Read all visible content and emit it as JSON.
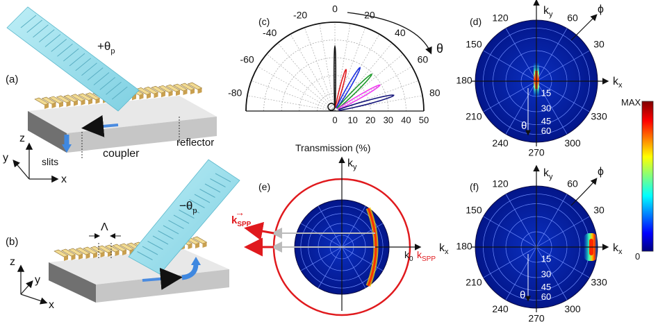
{
  "panel_a": {
    "label": "(a)",
    "angle_label": "+θ",
    "angle_sub": "p",
    "slits": "slits",
    "coupler": "coupler",
    "reflector": "reflector",
    "axis_z": "z",
    "axis_y": "y",
    "axis_x": "x"
  },
  "panel_b": {
    "label": "(b)",
    "angle_label": "−θ",
    "angle_sub": "p",
    "period": "Λ",
    "axis_z": "z",
    "axis_y": "y",
    "axis_x": "x"
  },
  "panel_c": {
    "label": "(c)",
    "theta_label": "θ",
    "angle_ticks": [
      "-80",
      "-60",
      "-40",
      "-20",
      "0",
      "20",
      "40",
      "60",
      "80"
    ],
    "radial_ticks": [
      "0",
      "10",
      "20",
      "30",
      "40",
      "50"
    ],
    "xlabel": "Transmission (%)"
  },
  "panel_d": {
    "label": "(d)",
    "ky": "k",
    "ky_sub": "y",
    "kx": "k",
    "kx_sub": "x",
    "phi": "ϕ",
    "theta": "θ",
    "phi_ticks": [
      "120",
      "60",
      "150",
      "30",
      "180",
      "210",
      "330",
      "240",
      "300",
      "270"
    ],
    "theta_ticks": [
      "15",
      "30",
      "45",
      "60"
    ]
  },
  "panel_e": {
    "label": "(e)",
    "ky": "k",
    "ky_sub": "y",
    "kx": "k",
    "kx_sub": "x",
    "kspp_vec": "k",
    "kspp_vec_sub": "SPP",
    "k0": "k",
    "k0_sub": "0",
    "kspp": "k",
    "kspp_sub": "SPP"
  },
  "panel_f": {
    "label": "(f)",
    "ky": "k",
    "ky_sub": "y",
    "kx": "k",
    "kx_sub": "x",
    "phi": "ϕ",
    "theta": "θ",
    "phi_ticks": [
      "120",
      "60",
      "150",
      "30",
      "180",
      "210",
      "330",
      "240",
      "300",
      "270"
    ],
    "theta_ticks": [
      "15",
      "30",
      "45",
      "60"
    ]
  },
  "colorbar": {
    "max": "MAX",
    "min": "0"
  },
  "colors": {
    "slab_blue": "#9fe0ec",
    "gold": "#e6c879",
    "polar_bg": "#04209a",
    "red": "#e0191d",
    "arrow_blue": "#3f88e0"
  },
  "chart_data": {
    "type": "polar-line",
    "title": "",
    "xlabel": "Transmission (%)",
    "radial_range": [
      0,
      50
    ],
    "angle_range": [
      -90,
      90
    ],
    "series": [
      {
        "color": "black",
        "peak_angle": 0,
        "peak_transmission": 35
      },
      {
        "color": "red",
        "peak_angle": 15,
        "peak_transmission": 23
      },
      {
        "color": "blue",
        "peak_angle": 30,
        "peak_transmission": 27
      },
      {
        "color": "green",
        "peak_angle": 45,
        "peak_transmission": 28
      },
      {
        "color": "magenta",
        "peak_angle": 60,
        "peak_transmission": 28
      },
      {
        "color": "navy",
        "peak_angle": 75,
        "peak_transmission": 33
      }
    ]
  }
}
